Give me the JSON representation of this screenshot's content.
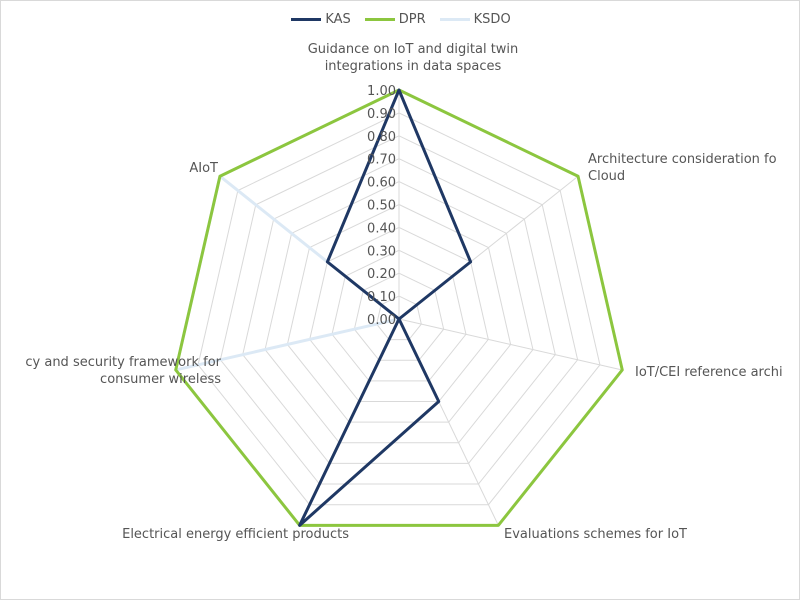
{
  "chart_data": {
    "type": "radar",
    "categories": [
      "Guidance on IoT and digital twin integrations in data spaces",
      "Architecture consideration for Edge Cloud",
      "IoT/CEI reference architecture",
      "Evaluations schemes for IoT",
      "Electrical energy efficient products",
      "Privacy and security framework for consumer wireless",
      "AIoT"
    ],
    "category_lines": [
      [
        "Guidance on IoT and digital twin",
        "integrations in data spaces"
      ],
      [
        "Architecture consideration fo",
        "Cloud"
      ],
      [
        "IoT/CEI reference archi"
      ],
      [
        "Evaluations schemes for IoT"
      ],
      [
        "Electrical energy efficient products"
      ],
      [
        "cy and security framework for",
        "consumer wireless"
      ],
      [
        "AIoT"
      ]
    ],
    "ticks": [
      "0.00",
      "0.10",
      "0.20",
      "0.30",
      "0.40",
      "0.50",
      "0.60",
      "0.70",
      "0.80",
      "0.90",
      "1.00"
    ],
    "rlim": [
      0,
      1
    ],
    "grid": true,
    "legend_position": "top",
    "series": [
      {
        "name": "KAS",
        "color": "#1f3864",
        "values": [
          1.0,
          0.4,
          0.0,
          0.4,
          1.0,
          0.0,
          0.4
        ]
      },
      {
        "name": "DPR",
        "color": "#8cc63f",
        "values": [
          1.0,
          1.0,
          1.0,
          1.0,
          1.0,
          1.0,
          1.0
        ]
      },
      {
        "name": "KSDO",
        "color": "#dce9f5",
        "values": [
          0.0,
          0.0,
          0.0,
          0.0,
          0.0,
          1.0,
          1.0
        ]
      }
    ]
  }
}
